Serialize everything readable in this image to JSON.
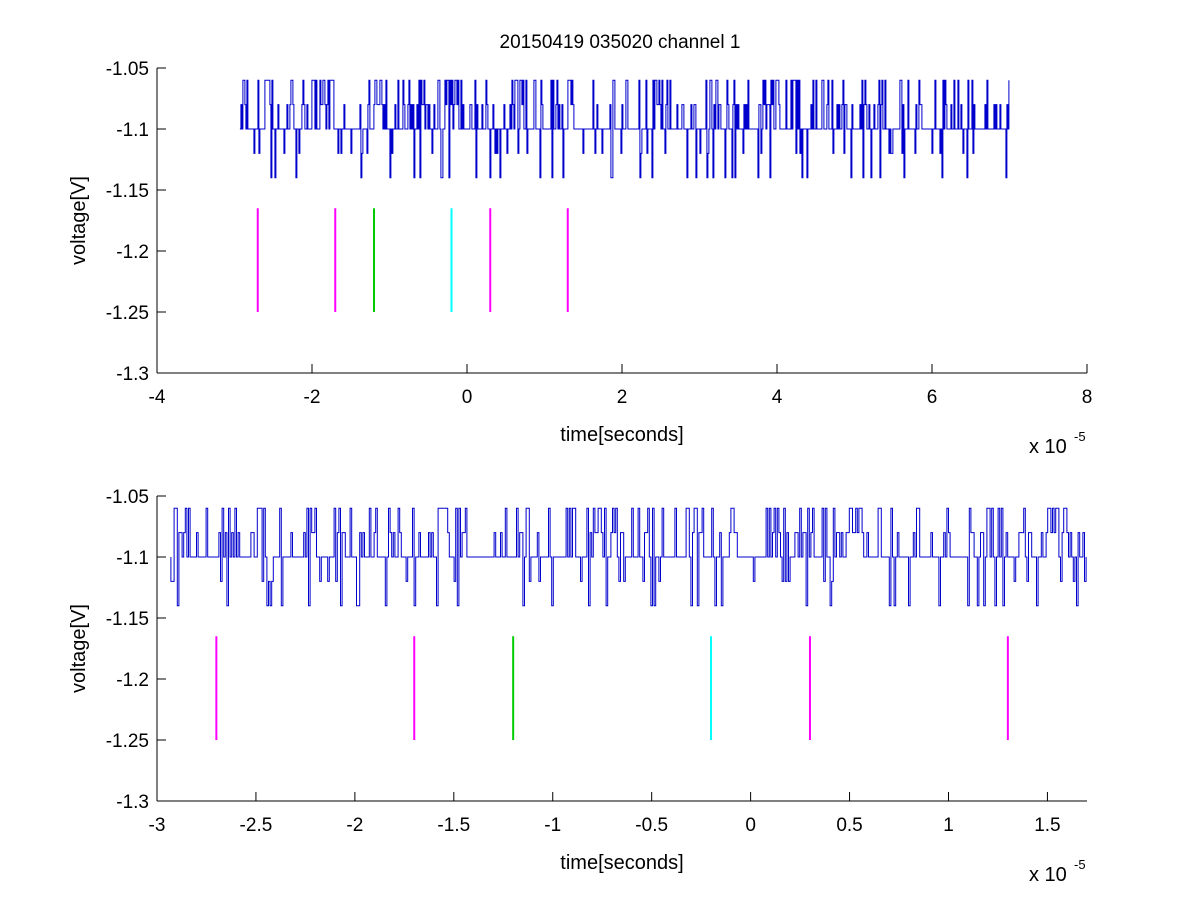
{
  "figure": {
    "title": "20150419 035020 channel 1",
    "background": "#ffffff",
    "trace_color": "#0000cc"
  },
  "chart_data": [
    {
      "type": "line",
      "title": "20150419 035020 channel 1",
      "xlabel": "time[seconds]",
      "ylabel": "voltage[V]",
      "x_multiplier_base": "x 10",
      "x_multiplier_exp": "-5",
      "xlim": [
        -4,
        8
      ],
      "ylim": [
        -1.3,
        -1.05
      ],
      "xticks": [
        -4,
        -2,
        0,
        2,
        4,
        6,
        8
      ],
      "xtick_labels": [
        "-4",
        "-2",
        "0",
        "2",
        "4",
        "6",
        "8"
      ],
      "yticks": [
        -1.3,
        -1.25,
        -1.2,
        -1.15,
        -1.1,
        -1.05
      ],
      "ytick_labels": [
        "-1.3",
        "-1.25",
        "-1.2",
        "-1.15",
        "-1.1",
        "-1.05"
      ],
      "grid": false,
      "series": [
        {
          "color": "#0000cc",
          "x_range": [
            -2.93,
            7.0
          ],
          "levels": [
            -1.14,
            -1.12,
            -1.1,
            -1.08,
            -1.06
          ],
          "baseline": -1.1,
          "note_density": "dense quantized noise between -1.14 and -1.06"
        }
      ],
      "markers": [
        {
          "x": -2.7,
          "y": [
            -1.25,
            -1.165
          ],
          "color": "#ff00ff"
        },
        {
          "x": -1.7,
          "y": [
            -1.25,
            -1.165
          ],
          "color": "#ff00ff"
        },
        {
          "x": -1.2,
          "y": [
            -1.25,
            -1.165
          ],
          "color": "#00cc00"
        },
        {
          "x": -0.2,
          "y": [
            -1.25,
            -1.165
          ],
          "color": "#00ffff"
        },
        {
          "x": 0.3,
          "y": [
            -1.25,
            -1.165
          ],
          "color": "#ff00ff"
        },
        {
          "x": 1.3,
          "y": [
            -1.25,
            -1.165
          ],
          "color": "#ff00ff"
        }
      ]
    },
    {
      "type": "line",
      "title": "",
      "xlabel": "time[seconds]",
      "ylabel": "voltage[V]",
      "x_multiplier_base": "x 10",
      "x_multiplier_exp": "-5",
      "xlim": [
        -3.0,
        1.7
      ],
      "ylim": [
        -1.3,
        -1.05
      ],
      "xticks": [
        -3,
        -2.5,
        -2,
        -1.5,
        -1,
        -0.5,
        0,
        0.5,
        1,
        1.5
      ],
      "xtick_labels": [
        "-3",
        "-2.5",
        "-2",
        "-1.5",
        "-1",
        "-0.5",
        "0",
        "0.5",
        "1",
        "1.5"
      ],
      "yticks": [
        -1.3,
        -1.25,
        -1.2,
        -1.15,
        -1.1,
        -1.05
      ],
      "ytick_labels": [
        "-1.3",
        "-1.25",
        "-1.2",
        "-1.15",
        "-1.1",
        "-1.05"
      ],
      "grid": false,
      "series": [
        {
          "color": "#0000cc",
          "x_range": [
            -2.93,
            1.7
          ],
          "levels": [
            -1.14,
            -1.12,
            -1.1,
            -1.08,
            -1.06
          ],
          "baseline": -1.1,
          "note_density": "quantized noise, zoomed"
        }
      ],
      "markers": [
        {
          "x": -2.7,
          "y": [
            -1.25,
            -1.165
          ],
          "color": "#ff00ff"
        },
        {
          "x": -1.7,
          "y": [
            -1.25,
            -1.165
          ],
          "color": "#ff00ff"
        },
        {
          "x": -1.2,
          "y": [
            -1.25,
            -1.165
          ],
          "color": "#00cc00"
        },
        {
          "x": -0.2,
          "y": [
            -1.25,
            -1.165
          ],
          "color": "#00ffff"
        },
        {
          "x": 0.3,
          "y": [
            -1.25,
            -1.165
          ],
          "color": "#ff00ff"
        },
        {
          "x": 1.3,
          "y": [
            -1.25,
            -1.165
          ],
          "color": "#ff00ff"
        }
      ]
    }
  ]
}
